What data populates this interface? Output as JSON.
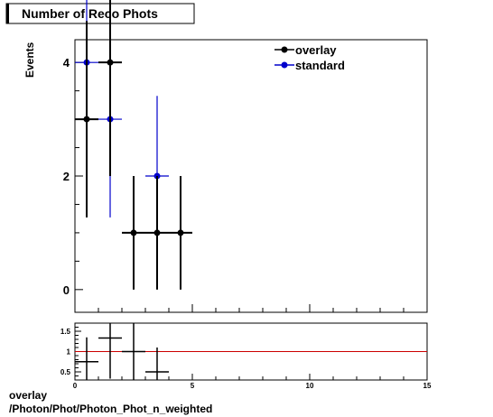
{
  "header": {
    "title": "Number of Reco Phots"
  },
  "footer": {
    "line1": "overlay",
    "line2": "/Photon/Phot/Photon_Phot_n_weighted"
  },
  "colors": {
    "overlay": "#000000",
    "standard": "#0000cc",
    "ratio_line": "#cc0000"
  },
  "chart_data": [
    {
      "type": "scatter",
      "title": "Number of Reco Phots",
      "ylabel": "Events",
      "xlabel": "",
      "xlim": [
        0,
        15
      ],
      "ylim": [
        -0.4,
        4.4
      ],
      "yticks": [
        0,
        2,
        4
      ],
      "ytick_labels": [
        "0",
        "2",
        "4"
      ],
      "legend": "top-right",
      "series": [
        {
          "name": "overlay",
          "x": [
            0.5,
            1.5,
            2.5,
            3.5,
            4.5
          ],
          "xerr": 0.5,
          "y": [
            3,
            4,
            1,
            1,
            1
          ],
          "yerr_low": [
            1.73,
            2.0,
            1.0,
            1.0,
            1.0
          ],
          "yerr_high": [
            1.73,
            2.0,
            1.0,
            1.0,
            1.0
          ]
        },
        {
          "name": "standard",
          "x": [
            0.5,
            1.5,
            3.5
          ],
          "xerr": 0.5,
          "y": [
            4,
            3,
            2
          ],
          "yerr_low": [
            2.0,
            1.73,
            1.41
          ],
          "yerr_high": [
            2.0,
            1.73,
            1.41
          ]
        }
      ]
    },
    {
      "type": "scatter",
      "xlim": [
        0,
        15
      ],
      "ylim": [
        0.3,
        1.7
      ],
      "xticks": [
        0,
        5,
        10,
        15
      ],
      "xtick_labels": [
        "0",
        "5",
        "10",
        "15"
      ],
      "yticks": [
        0.5,
        1,
        1.5
      ],
      "ytick_labels": [
        "0.5",
        "1",
        "1.5"
      ],
      "reference_line": 1,
      "series": [
        {
          "x": [
            0.5,
            1.5,
            2.5,
            3.5
          ],
          "xerr": 0.5,
          "y": [
            0.75,
            1.333,
            1.0,
            0.5
          ],
          "yerr_low": [
            0.6,
            1.0,
            1.0,
            0.6
          ],
          "yerr_high": [
            0.6,
            1.0,
            1.0,
            0.6
          ]
        }
      ]
    }
  ]
}
